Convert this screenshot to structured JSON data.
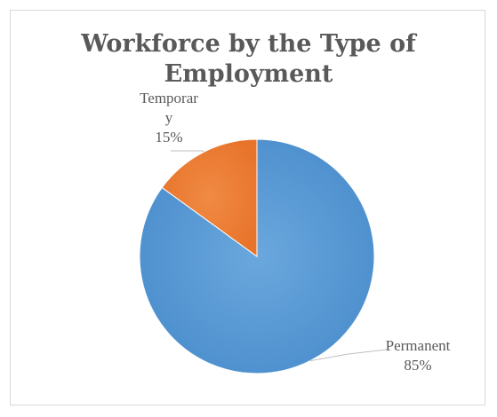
{
  "chart_data": {
    "type": "pie",
    "title": "Workforce by the Type of Employment",
    "title_lines": [
      "Workforce by the Type of",
      "Employment"
    ],
    "slices": [
      {
        "name": "Permanent",
        "value": 85,
        "value_label": "85%",
        "color": "#5b9bd5",
        "label_lines": [
          "Permanent",
          "85%"
        ]
      },
      {
        "name": "Temporary",
        "value": 15,
        "value_label": "15%",
        "color": "#ed7d31",
        "label_lines": [
          "Temporar",
          "y",
          "15%"
        ]
      }
    ],
    "legend": false,
    "leader_line_color": "#bfbfbf",
    "text_color": "#595959",
    "border_color": "#d9d9d9"
  }
}
